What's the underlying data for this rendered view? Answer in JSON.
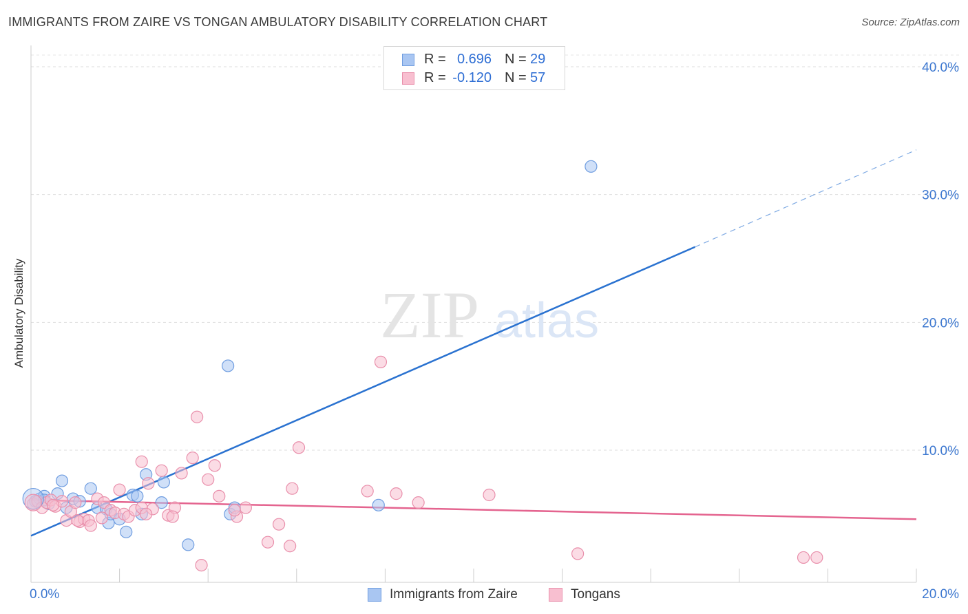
{
  "header": {
    "title": "IMMIGRANTS FROM ZAIRE VS TONGAN AMBULATORY DISABILITY CORRELATION CHART",
    "source": "Source: ZipAtlas.com"
  },
  "watermark": {
    "zip": "ZIP",
    "atlas": "atlas"
  },
  "legend_stats": [
    {
      "r_label": "R =",
      "r_value": "0.696",
      "n_label": "N =",
      "n_value": "29",
      "color": "#a9c6f2",
      "border": "#6f9de0"
    },
    {
      "r_label": "R =",
      "r_value": "-0.120",
      "n_label": "N =",
      "n_value": "57",
      "color": "#f8bfd0",
      "border": "#e98fab"
    }
  ],
  "chart_data": {
    "type": "scatter",
    "title": "IMMIGRANTS FROM ZAIRE VS TONGAN AMBULATORY DISABILITY CORRELATION CHART",
    "xlabel": "",
    "ylabel": "Ambulatory Disability",
    "xlim": [
      0,
      20
    ],
    "ylim": [
      0,
      42
    ],
    "x_ticks": [
      "0.0%",
      "20.0%"
    ],
    "y_ticks": [
      {
        "value": 10,
        "label": "10.0%"
      },
      {
        "value": 20,
        "label": "20.0%"
      },
      {
        "value": 30,
        "label": "30.0%"
      },
      {
        "value": 40,
        "label": "40.0%"
      }
    ],
    "grid": true,
    "legend_position": "bottom-center",
    "series": [
      {
        "name": "Immigrants from Zaire",
        "color": "#a9c6f2",
        "stroke": "#6f9de0",
        "line_color": "#2a72d0",
        "trend": {
          "x0": 0,
          "y0": 3.3,
          "x1": 15,
          "y1": 25.9,
          "dash_to_x": 20,
          "dash_to_y": 33.5
        },
        "points": [
          [
            0.1,
            6.0
          ],
          [
            0.2,
            6.2
          ],
          [
            0.3,
            6.4
          ],
          [
            0.4,
            5.8
          ],
          [
            0.6,
            6.6
          ],
          [
            0.7,
            7.6
          ],
          [
            0.8,
            5.5
          ],
          [
            0.95,
            6.2
          ],
          [
            1.1,
            6.0
          ],
          [
            1.35,
            7.0
          ],
          [
            1.5,
            5.5
          ],
          [
            1.7,
            5.4
          ],
          [
            1.75,
            4.3
          ],
          [
            1.8,
            5.0
          ],
          [
            2.0,
            4.6
          ],
          [
            2.15,
            3.6
          ],
          [
            2.3,
            6.5
          ],
          [
            2.4,
            6.4
          ],
          [
            2.5,
            5.0
          ],
          [
            2.6,
            8.1
          ],
          [
            2.95,
            5.9
          ],
          [
            3.0,
            7.5
          ],
          [
            3.55,
            2.6
          ],
          [
            4.45,
            16.6
          ],
          [
            4.5,
            5.0
          ],
          [
            4.6,
            5.5
          ],
          [
            7.85,
            5.7
          ],
          [
            12.65,
            32.2
          ],
          [
            0.3,
            6.1
          ]
        ]
      },
      {
        "name": "Tongans",
        "color": "#f8bfd0",
        "stroke": "#e98fab",
        "line_color": "#e4648f",
        "trend": {
          "x0": 0,
          "y0": 6.1,
          "x1": 20,
          "y1": 4.6
        },
        "points": [
          [
            0.05,
            5.8
          ],
          [
            0.15,
            6.0
          ],
          [
            0.25,
            5.5
          ],
          [
            0.35,
            5.9
          ],
          [
            0.45,
            6.1
          ],
          [
            0.55,
            5.6
          ],
          [
            0.7,
            6.0
          ],
          [
            0.8,
            4.5
          ],
          [
            0.9,
            5.2
          ],
          [
            1.0,
            5.9
          ],
          [
            1.1,
            4.4
          ],
          [
            1.2,
            4.6
          ],
          [
            1.3,
            4.5
          ],
          [
            1.35,
            4.1
          ],
          [
            1.5,
            6.2
          ],
          [
            1.6,
            4.7
          ],
          [
            1.65,
            5.9
          ],
          [
            1.8,
            5.3
          ],
          [
            1.9,
            5.1
          ],
          [
            2.0,
            6.9
          ],
          [
            2.1,
            5.0
          ],
          [
            2.2,
            4.8
          ],
          [
            2.35,
            5.3
          ],
          [
            2.5,
            5.5
          ],
          [
            2.5,
            9.1
          ],
          [
            2.65,
            7.4
          ],
          [
            2.75,
            5.4
          ],
          [
            2.95,
            8.4
          ],
          [
            3.1,
            4.9
          ],
          [
            3.25,
            5.5
          ],
          [
            3.4,
            8.2
          ],
          [
            3.65,
            9.4
          ],
          [
            3.75,
            12.6
          ],
          [
            3.85,
            1.0
          ],
          [
            4.0,
            7.7
          ],
          [
            4.15,
            8.8
          ],
          [
            4.25,
            6.4
          ],
          [
            4.65,
            4.8
          ],
          [
            4.85,
            5.5
          ],
          [
            5.35,
            2.8
          ],
          [
            5.6,
            4.2
          ],
          [
            5.85,
            2.5
          ],
          [
            5.9,
            7.0
          ],
          [
            6.05,
            10.2
          ],
          [
            7.6,
            6.8
          ],
          [
            7.9,
            16.9
          ],
          [
            8.25,
            6.6
          ],
          [
            8.75,
            5.9
          ],
          [
            10.35,
            6.5
          ],
          [
            12.35,
            1.9
          ],
          [
            17.45,
            1.6
          ],
          [
            17.75,
            1.6
          ],
          [
            0.5,
            5.7
          ],
          [
            1.05,
            4.5
          ],
          [
            2.6,
            5.0
          ],
          [
            3.2,
            4.8
          ],
          [
            4.6,
            5.3
          ]
        ]
      }
    ]
  }
}
